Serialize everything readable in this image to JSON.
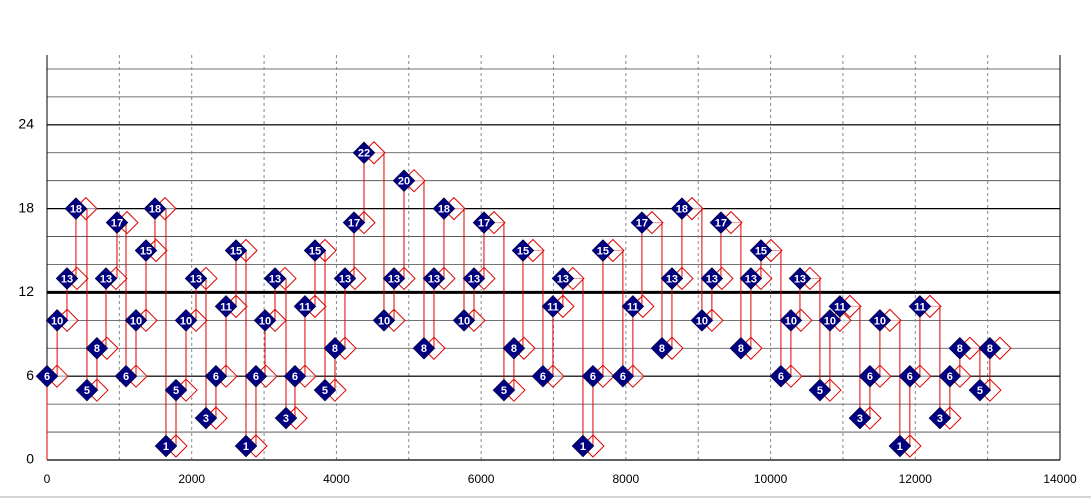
{
  "chart_data": {
    "type": "step",
    "x": [
      0,
      140,
      276,
      400,
      552,
      690,
      815,
      967,
      1092,
      1230,
      1368,
      1492,
      1644,
      1783,
      1921,
      2059,
      2197,
      2335,
      2474,
      2612,
      2750,
      2888,
      3013,
      3151,
      3303,
      3427,
      3565,
      3704,
      3842,
      3980,
      4118,
      4243,
      4381,
      4657,
      4796,
      4934,
      5210,
      5348,
      5486,
      5763,
      5901,
      6039,
      6315,
      6453,
      6578,
      6854,
      6992,
      7130,
      7407,
      7545,
      7683,
      7959,
      8097,
      8222,
      8499,
      8637,
      8775,
      9051,
      9189,
      9314,
      9590,
      9728,
      9867,
      10143,
      10281,
      10406,
      10682,
      10820,
      10958,
      11235,
      11373,
      11511,
      11787,
      11925,
      12064,
      12340,
      12478,
      12616,
      12893,
      13031
    ],
    "values": [
      6,
      10,
      13,
      18,
      5,
      8,
      13,
      17,
      6,
      10,
      15,
      18,
      1,
      5,
      10,
      13,
      3,
      6,
      11,
      15,
      1,
      6,
      10,
      13,
      3,
      6,
      11,
      15,
      5,
      8,
      13,
      17,
      22,
      10,
      13,
      20,
      8,
      13,
      18,
      10,
      13,
      17,
      5,
      8,
      15,
      6,
      11,
      13,
      1,
      6,
      15,
      6,
      11,
      17,
      8,
      13,
      18,
      10,
      13,
      17,
      8,
      13,
      15,
      6,
      10,
      13,
      5,
      10,
      11,
      3,
      6,
      10,
      1,
      6,
      11,
      3,
      6,
      8,
      5,
      8
    ],
    "color": "#000080",
    "line_color": "#e00000",
    "xlim": [
      0,
      14000
    ],
    "xticks": [
      0,
      2000,
      4000,
      6000,
      8000,
      10000,
      12000,
      14000
    ],
    "ylim": [
      0,
      29
    ],
    "yticks": [
      0,
      6,
      12,
      18,
      24
    ],
    "grid": true
  }
}
